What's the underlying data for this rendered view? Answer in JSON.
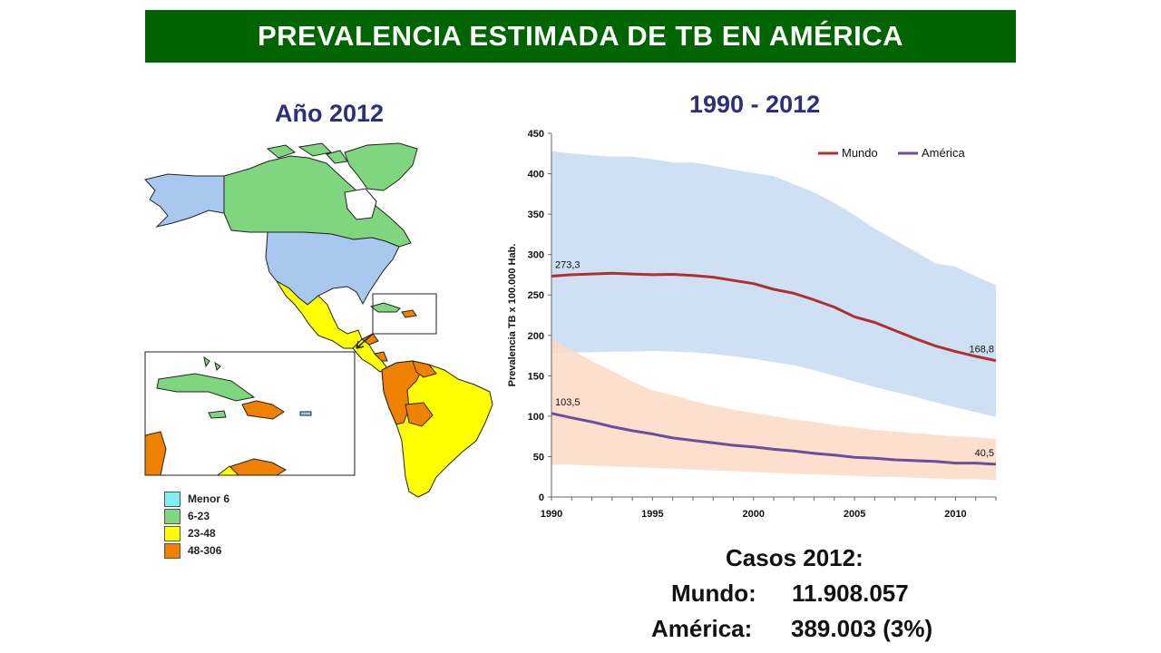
{
  "header": {
    "title": "PREVALENCIA ESTIMADA DE TB EN AMÉRICA"
  },
  "map": {
    "title": "Año 2012",
    "legend": [
      {
        "label": "Menor 6",
        "color": "#7ff0f0"
      },
      {
        "label": "6-23",
        "color": "#7fd67f"
      },
      {
        "label": "23-48",
        "color": "#ffff00"
      },
      {
        "label": "48-306",
        "color": "#f08000"
      }
    ]
  },
  "chart_title": "1990 - 2012",
  "chart_data": {
    "type": "line",
    "ylabel": "Prevalencia TB x 100.000 Hab.",
    "xlabel": "",
    "xlim": [
      1990,
      2012
    ],
    "ylim": [
      0,
      450
    ],
    "yticks": [
      0,
      50,
      100,
      150,
      200,
      250,
      300,
      350,
      400,
      450
    ],
    "xticks": [
      1990,
      1995,
      2000,
      2005,
      2010
    ],
    "legend_position": "top-right",
    "x": [
      1990,
      1991,
      1992,
      1993,
      1994,
      1995,
      1996,
      1997,
      1998,
      1999,
      2000,
      2001,
      2002,
      2003,
      2004,
      2005,
      2006,
      2007,
      2008,
      2009,
      2010,
      2011,
      2012
    ],
    "series": [
      {
        "name": "Mundo",
        "color": "#b03030",
        "band_color": "#cfe0f5",
        "values": [
          273.3,
          275,
          276,
          277,
          276,
          275,
          275.5,
          274,
          272,
          268,
          264,
          257,
          252,
          244,
          235,
          223,
          216,
          206,
          196,
          187,
          180,
          174,
          168.8
        ],
        "lower": [
          178,
          179,
          179,
          180,
          180,
          181,
          180,
          179,
          177,
          174,
          171,
          167,
          163,
          157,
          150,
          143,
          136,
          130,
          124,
          117,
          111,
          105,
          99
        ],
        "upper": [
          428,
          425,
          423,
          421,
          421,
          418,
          414,
          414,
          410,
          405,
          401,
          397,
          387,
          377,
          364,
          349,
          332,
          318,
          304,
          289,
          285,
          273,
          262
        ]
      },
      {
        "name": "América",
        "color": "#6a4f9a",
        "band_color": "#fbd9c3",
        "values": [
          103.5,
          98,
          93,
          87,
          82,
          78,
          73,
          70,
          67,
          64,
          62,
          59,
          57,
          54,
          52,
          49,
          48,
          46,
          45,
          44,
          42,
          42,
          40.5
        ],
        "lower": [
          40,
          40,
          39,
          38,
          37,
          36,
          35,
          34,
          33,
          32,
          31,
          30,
          29,
          28,
          27,
          26,
          25,
          25,
          24,
          23,
          22,
          22,
          21
        ],
        "upper": [
          196,
          182,
          168,
          156,
          143,
          132,
          126,
          119,
          113,
          108,
          104,
          100,
          96,
          93,
          89,
          86,
          83,
          81,
          79,
          77,
          75,
          74,
          72
        ]
      }
    ],
    "annotations": [
      {
        "text": "273,3",
        "x": 1990,
        "y": 273.3
      },
      {
        "text": "168,8",
        "x": 2012,
        "y": 168.8
      },
      {
        "text": "103,5",
        "x": 1990,
        "y": 103.5
      },
      {
        "text": "40,5",
        "x": 2012,
        "y": 40.5
      }
    ]
  },
  "cases": {
    "title": "Casos 2012:",
    "mundo_label": "Mundo:",
    "mundo_value": "11.908.057",
    "america_label": "América:",
    "america_value": "389.003 (3%)"
  }
}
